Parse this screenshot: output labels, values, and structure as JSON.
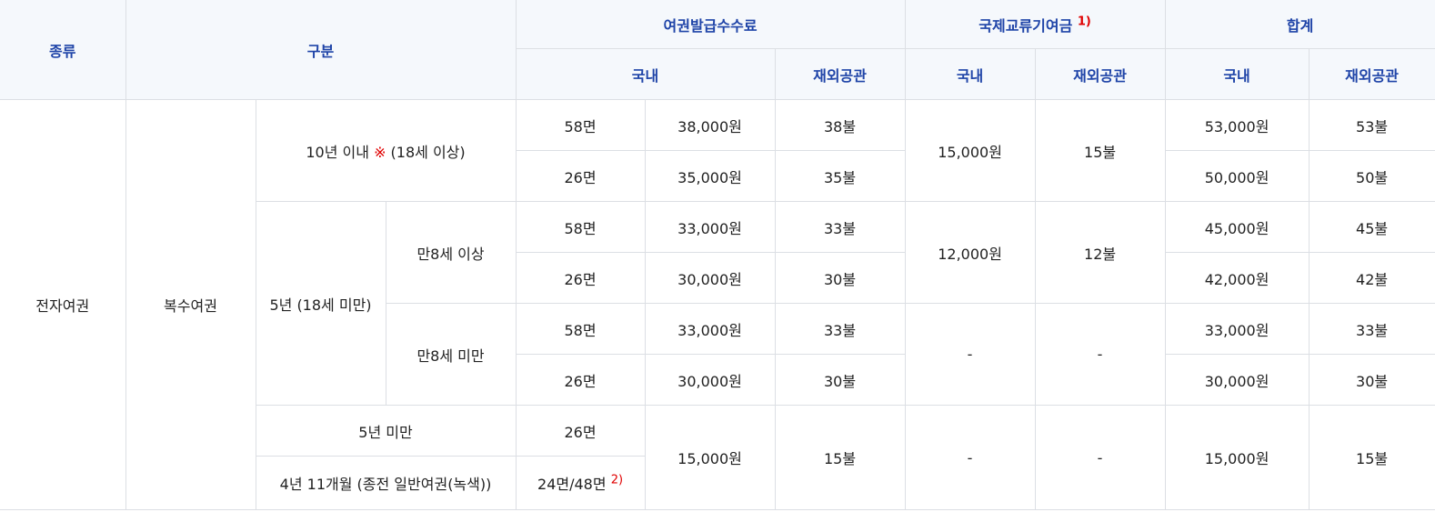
{
  "header": {
    "type": "종류",
    "category": "구분",
    "issue_fee": "여권발급수수료",
    "intl_fund": "국제교류기여금",
    "intl_fund_note": "1)",
    "total": "합계",
    "domestic": "국내",
    "overseas": "재외공관"
  },
  "body": {
    "kind": "전자여권",
    "passport_type": "복수여권",
    "ten_year": {
      "label_before": "10년 이내 ",
      "mark": "※",
      "label_after": " (18세 이상)"
    },
    "five_year": "5년 (18세 미만)",
    "age8_over": "만8세 이상",
    "age8_under": "만8세 미만",
    "under5": "5년 미만",
    "green": "4년 11개월 (종전 일반여권(녹색))",
    "green_pages": "24면/48면",
    "green_note": "2)",
    "rows": [
      {
        "pages": "58면",
        "fee_dom": "38,000원",
        "fee_ovs": "38불",
        "total_dom": "53,000원",
        "total_ovs": "53불"
      },
      {
        "pages": "26면",
        "fee_dom": "35,000원",
        "fee_ovs": "35불",
        "total_dom": "50,000원",
        "total_ovs": "50불"
      },
      {
        "pages": "58면",
        "fee_dom": "33,000원",
        "fee_ovs": "33불",
        "total_dom": "45,000원",
        "total_ovs": "45불"
      },
      {
        "pages": "26면",
        "fee_dom": "30,000원",
        "fee_ovs": "30불",
        "total_dom": "42,000원",
        "total_ovs": "42불"
      },
      {
        "pages": "58면",
        "fee_dom": "33,000원",
        "fee_ovs": "33불",
        "total_dom": "33,000원",
        "total_ovs": "33불"
      },
      {
        "pages": "26면",
        "fee_dom": "30,000원",
        "fee_ovs": "30불",
        "total_dom": "30,000원",
        "total_ovs": "30불"
      }
    ],
    "fund_group1": {
      "dom": "15,000원",
      "ovs": "15불"
    },
    "fund_group2": {
      "dom": "12,000원",
      "ovs": "12불"
    },
    "fund_group3": {
      "dom": "-",
      "ovs": "-"
    },
    "under5_pages": "26면",
    "young_fee_dom": "15,000원",
    "young_fee_ovs": "15불",
    "young_fund_dom": "-",
    "young_fund_ovs": "-",
    "young_total_dom": "15,000원",
    "young_total_ovs": "15불"
  }
}
